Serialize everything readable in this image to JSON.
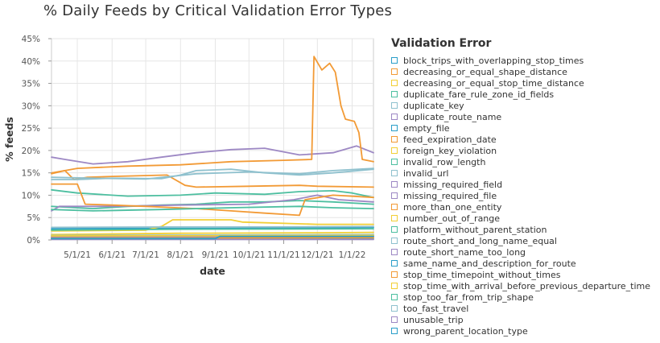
{
  "chart_data": {
    "type": "line",
    "title": "% Daily Feeds by Critical Validation Error Types",
    "xlabel": "date",
    "ylabel": "% feeds",
    "ylim": [
      0,
      45
    ],
    "yticks": [
      "0%",
      "5%",
      "10%",
      "15%",
      "20%",
      "25%",
      "30%",
      "35%",
      "40%",
      "45%"
    ],
    "x_range": [
      "2021-04-08",
      "2022-01-20"
    ],
    "xticks": [
      {
        "date": "2021-05-01",
        "label": "5/1/21"
      },
      {
        "date": "2021-06-01",
        "label": "6/1/21"
      },
      {
        "date": "2021-07-01",
        "label": "7/1/21"
      },
      {
        "date": "2021-08-01",
        "label": "8/1/21"
      },
      {
        "date": "2021-09-01",
        "label": "9/1/21"
      },
      {
        "date": "2021-10-01",
        "label": "10/1/21"
      },
      {
        "date": "2021-11-01",
        "label": "11/1/21"
      },
      {
        "date": "2021-12-01",
        "label": "12/1/21"
      },
      {
        "date": "2022-01-01",
        "label": "1/1/22"
      }
    ],
    "grid": true,
    "legend_title": "Validation Error",
    "legend_position": "right",
    "series": [
      {
        "name": "block_trips_with_overlapping_stop_times",
        "color": "#2a9ec9",
        "points": [
          [
            "2021-04-08",
            2.5
          ],
          [
            "2021-06-15",
            2.6
          ],
          [
            "2021-09-01",
            2.6
          ],
          [
            "2021-12-01",
            2.7
          ],
          [
            "2022-01-20",
            2.8
          ]
        ]
      },
      {
        "name": "decreasing_or_equal_shape_distance",
        "color": "#f29a35",
        "points": [
          [
            "2021-04-08",
            14.8
          ],
          [
            "2021-04-20",
            15.5
          ],
          [
            "2021-04-28",
            13.5
          ],
          [
            "2021-05-10",
            14.0
          ],
          [
            "2021-06-01",
            14.2
          ],
          [
            "2021-07-20",
            14.5
          ],
          [
            "2021-08-05",
            12.2
          ],
          [
            "2021-08-15",
            11.8
          ],
          [
            "2021-10-01",
            12.0
          ],
          [
            "2021-11-15",
            12.2
          ],
          [
            "2021-12-01",
            12.0
          ],
          [
            "2022-01-20",
            11.8
          ]
        ]
      },
      {
        "name": "decreasing_or_equal_stop_time_distance",
        "color": "#f2cf35",
        "points": [
          [
            "2021-04-08",
            2.0
          ],
          [
            "2021-07-01",
            2.2
          ],
          [
            "2021-07-15",
            3.0
          ],
          [
            "2021-07-25",
            4.5
          ],
          [
            "2021-09-15",
            4.5
          ],
          [
            "2021-09-25",
            4.0
          ],
          [
            "2021-12-01",
            3.5
          ],
          [
            "2022-01-20",
            3.5
          ]
        ]
      },
      {
        "name": "duplicate_fare_rule_zone_id_fields",
        "color": "#4dbfa0",
        "points": [
          [
            "2021-04-08",
            11.2
          ],
          [
            "2021-05-01",
            10.5
          ],
          [
            "2021-06-15",
            9.8
          ],
          [
            "2021-08-01",
            10.0
          ],
          [
            "2021-09-01",
            10.5
          ],
          [
            "2021-10-15",
            10.2
          ],
          [
            "2021-11-15",
            10.8
          ],
          [
            "2021-12-15",
            11.0
          ],
          [
            "2022-01-01",
            10.5
          ],
          [
            "2022-01-20",
            9.5
          ]
        ]
      },
      {
        "name": "duplicate_key",
        "color": "#8fc1ce",
        "points": [
          [
            "2021-04-08",
            13.5
          ],
          [
            "2021-05-01",
            13.5
          ],
          [
            "2021-06-01",
            13.8
          ],
          [
            "2021-07-15",
            13.7
          ],
          [
            "2021-08-01",
            14.5
          ],
          [
            "2021-08-15",
            15.5
          ],
          [
            "2021-09-15",
            15.8
          ],
          [
            "2021-10-15",
            15.0
          ],
          [
            "2021-11-15",
            14.5
          ],
          [
            "2021-12-15",
            15.0
          ],
          [
            "2022-01-20",
            15.8
          ]
        ]
      },
      {
        "name": "duplicate_route_name",
        "color": "#9d88c4",
        "points": [
          [
            "2021-04-08",
            18.5
          ],
          [
            "2021-04-20",
            18.0
          ],
          [
            "2021-05-15",
            17.0
          ],
          [
            "2021-06-15",
            17.5
          ],
          [
            "2021-07-15",
            18.5
          ],
          [
            "2021-08-15",
            19.5
          ],
          [
            "2021-09-15",
            20.2
          ],
          [
            "2021-10-15",
            20.5
          ],
          [
            "2021-11-15",
            19.0
          ],
          [
            "2021-12-15",
            19.5
          ],
          [
            "2022-01-05",
            21.0
          ],
          [
            "2022-01-20",
            19.5
          ]
        ]
      },
      {
        "name": "empty_file",
        "color": "#2a9ec9",
        "points": [
          [
            "2021-04-08",
            0.5
          ],
          [
            "2021-08-01",
            0.5
          ],
          [
            "2021-08-10",
            0.9
          ],
          [
            "2021-12-01",
            0.9
          ],
          [
            "2022-01-20",
            1.0
          ]
        ]
      },
      {
        "name": "feed_expiration_date",
        "color": "#f29a35",
        "points": [
          [
            "2021-04-08",
            15.0
          ],
          [
            "2021-05-01",
            16.0
          ],
          [
            "2021-06-15",
            16.5
          ],
          [
            "2021-08-01",
            16.8
          ],
          [
            "2021-09-15",
            17.5
          ],
          [
            "2021-11-01",
            17.8
          ],
          [
            "2021-11-26",
            18.0
          ],
          [
            "2021-11-28",
            41.0
          ],
          [
            "2021-12-05",
            38.0
          ],
          [
            "2021-12-12",
            39.5
          ],
          [
            "2021-12-17",
            37.5
          ],
          [
            "2021-12-22",
            30.0
          ],
          [
            "2021-12-26",
            27.0
          ],
          [
            "2022-01-03",
            26.5
          ],
          [
            "2022-01-07",
            24.0
          ],
          [
            "2022-01-10",
            18.0
          ],
          [
            "2022-01-20",
            17.5
          ]
        ]
      },
      {
        "name": "foreign_key_violation",
        "color": "#f2cf35",
        "points": [
          [
            "2021-04-08",
            1.2
          ],
          [
            "2021-08-01",
            1.5
          ],
          [
            "2021-12-01",
            1.6
          ],
          [
            "2022-01-20",
            1.7
          ]
        ]
      },
      {
        "name": "invalid_row_length",
        "color": "#4dbfa0",
        "points": [
          [
            "2021-04-08",
            7.5
          ],
          [
            "2021-05-15",
            7.0
          ],
          [
            "2021-06-15",
            7.5
          ],
          [
            "2021-07-15",
            7.8
          ],
          [
            "2021-08-15",
            8.0
          ],
          [
            "2021-09-15",
            8.5
          ],
          [
            "2021-10-15",
            8.5
          ],
          [
            "2021-11-15",
            8.8
          ],
          [
            "2021-12-15",
            8.5
          ],
          [
            "2022-01-20",
            8.0
          ]
        ]
      },
      {
        "name": "invalid_url",
        "color": "#8fc1ce",
        "points": [
          [
            "2021-04-08",
            2.8
          ],
          [
            "2021-07-15",
            2.9
          ],
          [
            "2021-10-15",
            2.9
          ],
          [
            "2022-01-20",
            3.0
          ]
        ]
      },
      {
        "name": "missing_required_field",
        "color": "#9d88c4",
        "points": [
          [
            "2021-04-08",
            6.5
          ],
          [
            "2021-04-15",
            7.5
          ],
          [
            "2021-06-01",
            7.5
          ],
          [
            "2021-08-01",
            7.8
          ],
          [
            "2021-10-01",
            8.0
          ],
          [
            "2021-11-10",
            9.0
          ],
          [
            "2021-12-01",
            10.0
          ],
          [
            "2021-12-20",
            9.0
          ],
          [
            "2022-01-20",
            8.5
          ]
        ]
      },
      {
        "name": "missing_required_file",
        "color": "#9d88c4",
        "points": [
          [
            "2021-04-08",
            0.8
          ],
          [
            "2021-10-01",
            0.8
          ],
          [
            "2022-01-20",
            0.9
          ]
        ]
      },
      {
        "name": "more_than_one_entity",
        "color": "#f29a35",
        "points": [
          [
            "2021-04-08",
            12.5
          ],
          [
            "2021-05-01",
            12.5
          ],
          [
            "2021-05-08",
            8.0
          ],
          [
            "2021-06-01",
            7.8
          ],
          [
            "2021-07-01",
            7.5
          ],
          [
            "2021-08-15",
            7.0
          ],
          [
            "2021-09-15",
            6.5
          ],
          [
            "2021-10-15",
            6.0
          ],
          [
            "2021-11-15",
            5.5
          ],
          [
            "2021-11-20",
            9.0
          ],
          [
            "2021-12-15",
            10.0
          ],
          [
            "2022-01-20",
            9.5
          ]
        ]
      },
      {
        "name": "number_out_of_range",
        "color": "#f2cf35",
        "points": [
          [
            "2021-04-08",
            0.3
          ],
          [
            "2022-01-20",
            0.4
          ]
        ]
      },
      {
        "name": "platform_without_parent_station",
        "color": "#4dbfa0",
        "points": [
          [
            "2021-04-08",
            2.2
          ],
          [
            "2021-08-01",
            2.4
          ],
          [
            "2022-01-20",
            2.5
          ]
        ]
      },
      {
        "name": "route_short_and_long_name_equal",
        "color": "#8fc1ce",
        "points": [
          [
            "2021-04-08",
            1.0
          ],
          [
            "2022-01-20",
            1.2
          ]
        ]
      },
      {
        "name": "route_short_name_too_long",
        "color": "#9d88c4",
        "points": [
          [
            "2021-04-08",
            0.6
          ],
          [
            "2022-01-20",
            0.7
          ]
        ]
      },
      {
        "name": "same_name_and_description_for_route",
        "color": "#2a9ec9",
        "points": [
          [
            "2021-04-08",
            0.2
          ],
          [
            "2022-01-20",
            0.2
          ]
        ]
      },
      {
        "name": "stop_time_timepoint_without_times",
        "color": "#f29a35",
        "points": [
          [
            "2021-04-08",
            0.4
          ],
          [
            "2022-01-20",
            0.5
          ]
        ]
      },
      {
        "name": "stop_time_with_arrival_before_previous_departure_time",
        "color": "#f2cf35",
        "points": [
          [
            "2021-04-08",
            0.9
          ],
          [
            "2022-01-20",
            1.0
          ]
        ]
      },
      {
        "name": "stop_too_far_from_trip_shape",
        "color": "#4dbfa0",
        "points": [
          [
            "2021-04-08",
            6.8
          ],
          [
            "2021-05-15",
            6.5
          ],
          [
            "2021-07-15",
            6.8
          ],
          [
            "2021-09-15",
            7.2
          ],
          [
            "2021-11-15",
            7.5
          ],
          [
            "2021-12-15",
            7.2
          ],
          [
            "2022-01-20",
            7.0
          ]
        ]
      },
      {
        "name": "too_fast_travel",
        "color": "#8fc1ce",
        "points": [
          [
            "2021-04-08",
            14.0
          ],
          [
            "2021-05-15",
            13.8
          ],
          [
            "2021-07-01",
            13.6
          ],
          [
            "2021-08-15",
            14.8
          ],
          [
            "2021-10-01",
            15.2
          ],
          [
            "2021-11-15",
            14.8
          ],
          [
            "2021-12-15",
            15.5
          ],
          [
            "2022-01-20",
            16.0
          ]
        ]
      },
      {
        "name": "unusable_trip",
        "color": "#9d88c4",
        "points": [
          [
            "2021-04-08",
            0.1
          ],
          [
            "2022-01-20",
            0.1
          ]
        ]
      },
      {
        "name": "wrong_parent_location_type",
        "color": "#2a9ec9",
        "points": [
          [
            "2021-04-08",
            0.3
          ],
          [
            "2021-09-01",
            0.3
          ],
          [
            "2021-09-05",
            0.8
          ],
          [
            "2022-01-20",
            0.8
          ]
        ]
      }
    ]
  }
}
